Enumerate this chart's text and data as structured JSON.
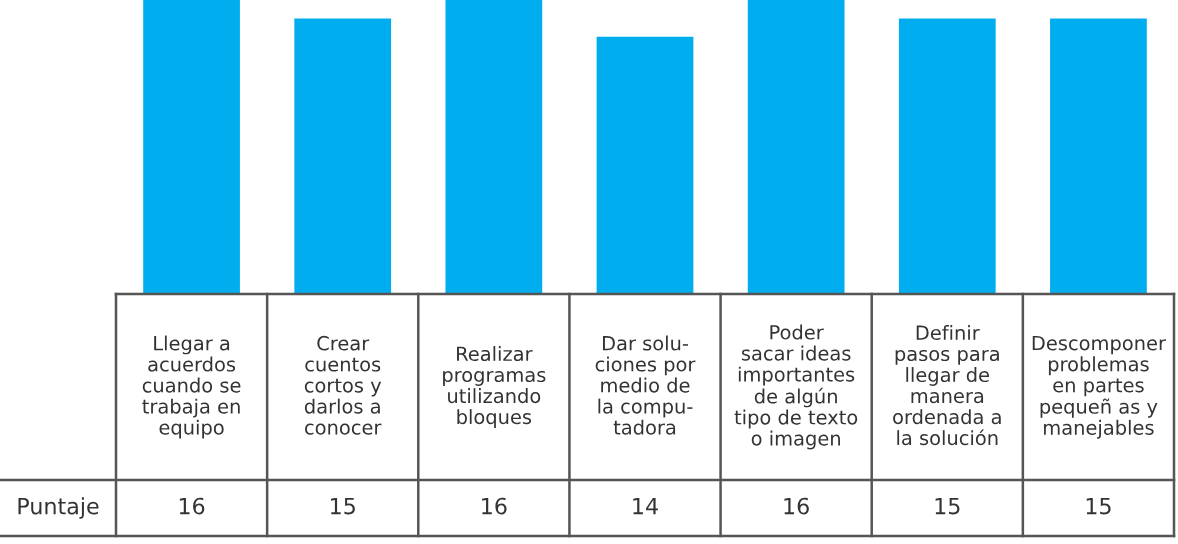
{
  "chart_data": {
    "type": "bar",
    "categories": [
      "Llegar a\nacuerdos\ncuando se\ntrabaja en\nequipo",
      "Crear\ncuentos\ncortos y\ndarlos a\nconocer",
      "Realizar\nprogramas\nutilizando\nbloques",
      "Dar solu-\nciones por\nmedio de\nla compu-\ntadora",
      "Poder\nsacar ideas\nimportantes\nde algún\ntipo de texto\no imagen",
      "Definir\npasos para\nllegar de\nmanera\nordenada a\nla solución",
      "Descomponer\nproblemas\nen partes\npequeñ as y\nmanejables"
    ],
    "values": [
      16,
      15,
      16,
      14,
      16,
      15,
      15
    ],
    "color": "#00aeef",
    "data_labels": true,
    "tick_labels": false,
    "annotations": [
      "Puntaje"
    ]
  }
}
